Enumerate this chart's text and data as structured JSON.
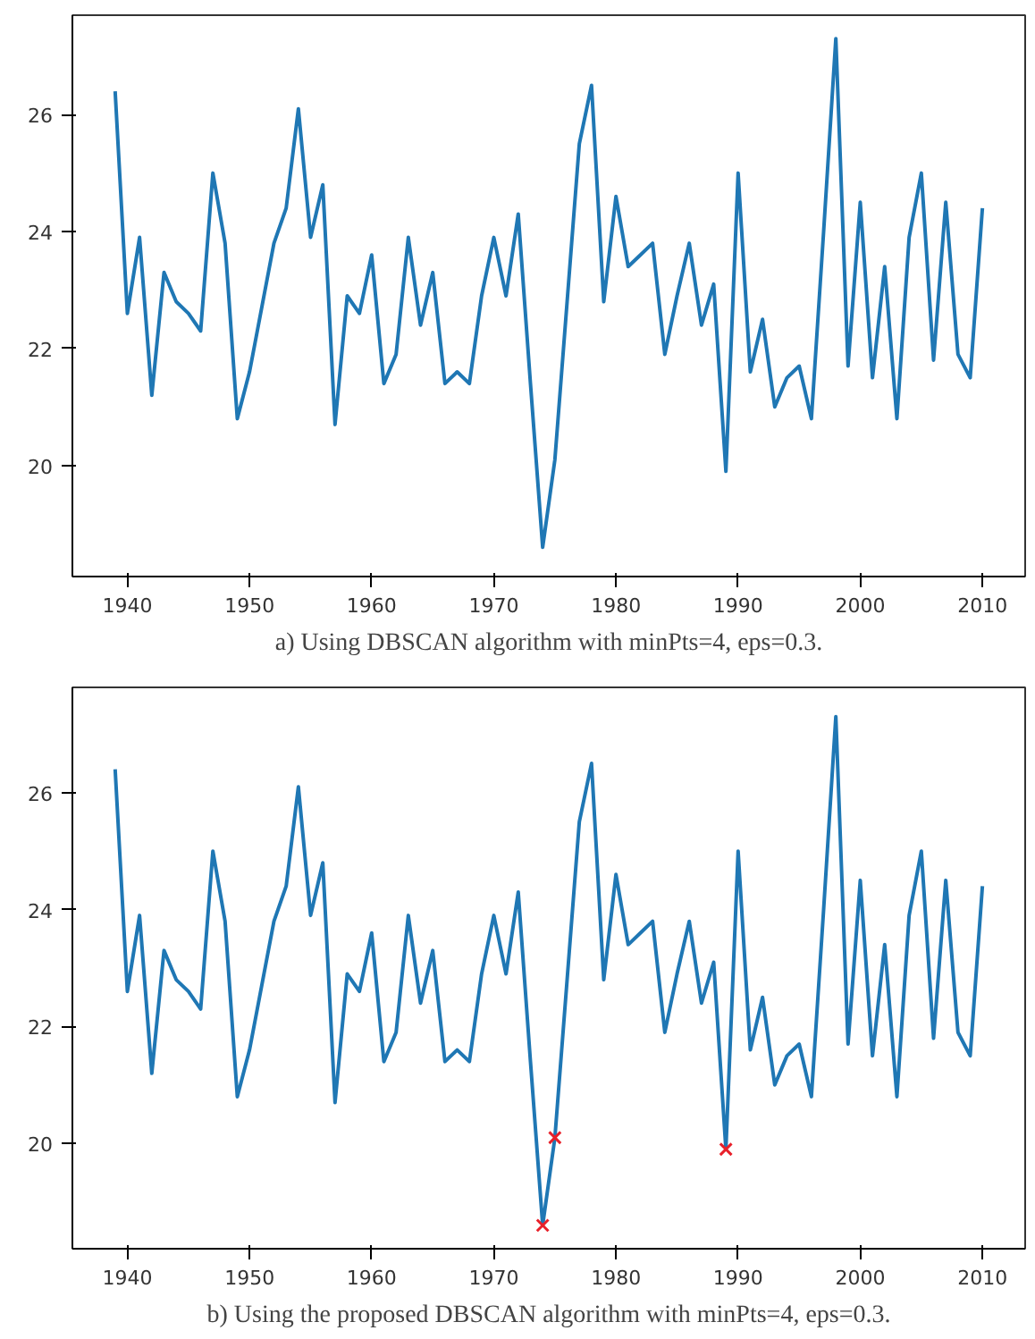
{
  "chart_data": [
    {
      "type": "line",
      "annotations": [
        "a) Using DBSCAN algorithm with minPts=4, eps=0.3."
      ],
      "x": [
        1939,
        1940,
        1941,
        1942,
        1943,
        1944,
        1945,
        1946,
        1947,
        1948,
        1949,
        1950,
        1951,
        1952,
        1953,
        1954,
        1955,
        1956,
        1957,
        1958,
        1959,
        1960,
        1961,
        1962,
        1963,
        1964,
        1965,
        1966,
        1967,
        1968,
        1969,
        1970,
        1971,
        1972,
        1973,
        1974,
        1975,
        1976,
        1977,
        1978,
        1979,
        1980,
        1981,
        1982,
        1983,
        1984,
        1985,
        1986,
        1987,
        1988,
        1989,
        1990,
        1991,
        1992,
        1993,
        1994,
        1995,
        1996,
        1997,
        1998,
        1999,
        2000,
        2001,
        2002,
        2003,
        2004,
        2005,
        2006,
        2007,
        2008,
        2009,
        2010
      ],
      "series": [
        {
          "color": "#1f77b4",
          "values": [
            26.4,
            22.6,
            23.9,
            21.2,
            23.3,
            22.8,
            22.6,
            22.3,
            25.0,
            23.8,
            20.8,
            21.6,
            22.7,
            23.8,
            24.4,
            26.1,
            23.9,
            24.8,
            20.7,
            22.9,
            22.6,
            23.6,
            21.4,
            21.9,
            23.9,
            22.4,
            23.3,
            21.4,
            21.6,
            21.4,
            22.9,
            23.9,
            22.9,
            24.3,
            21.4,
            18.6,
            20.1,
            22.8,
            25.5,
            26.5,
            22.8,
            24.6,
            23.4,
            23.6,
            23.8,
            21.9,
            22.9,
            23.8,
            22.4,
            23.1,
            19.9,
            25.0,
            21.6,
            22.5,
            21.0,
            21.5,
            21.7,
            20.8,
            24.0,
            27.3,
            21.7,
            24.5,
            21.5,
            23.4,
            20.8,
            23.9,
            25.0,
            21.8,
            24.5,
            21.9,
            21.5,
            24.4
          ]
        }
      ],
      "xlim": [
        1935.5,
        2013.5
      ],
      "ylim": [
        18.1,
        27.7
      ],
      "xticks": [
        1940,
        1950,
        1960,
        1970,
        1980,
        1990,
        2000,
        2010
      ],
      "yticks": [
        20,
        22,
        24,
        26
      ],
      "grid": false
    },
    {
      "type": "line",
      "annotations": [
        "b) Using the proposed DBSCAN algorithm with minPts=4, eps=0.3."
      ],
      "x": [
        1939,
        1940,
        1941,
        1942,
        1943,
        1944,
        1945,
        1946,
        1947,
        1948,
        1949,
        1950,
        1951,
        1952,
        1953,
        1954,
        1955,
        1956,
        1957,
        1958,
        1959,
        1960,
        1961,
        1962,
        1963,
        1964,
        1965,
        1966,
        1967,
        1968,
        1969,
        1970,
        1971,
        1972,
        1973,
        1974,
        1975,
        1976,
        1977,
        1978,
        1979,
        1980,
        1981,
        1982,
        1983,
        1984,
        1985,
        1986,
        1987,
        1988,
        1989,
        1990,
        1991,
        1992,
        1993,
        1994,
        1995,
        1996,
        1997,
        1998,
        1999,
        2000,
        2001,
        2002,
        2003,
        2004,
        2005,
        2006,
        2007,
        2008,
        2009,
        2010
      ],
      "series": [
        {
          "color": "#1f77b4",
          "values": [
            26.4,
            22.6,
            23.9,
            21.2,
            23.3,
            22.8,
            22.6,
            22.3,
            25.0,
            23.8,
            20.8,
            21.6,
            22.7,
            23.8,
            24.4,
            26.1,
            23.9,
            24.8,
            20.7,
            22.9,
            22.6,
            23.6,
            21.4,
            21.9,
            23.9,
            22.4,
            23.3,
            21.4,
            21.6,
            21.4,
            22.9,
            23.9,
            22.9,
            24.3,
            21.4,
            18.6,
            20.1,
            22.8,
            25.5,
            26.5,
            22.8,
            24.6,
            23.4,
            23.6,
            23.8,
            21.9,
            22.9,
            23.8,
            22.4,
            23.1,
            19.9,
            25.0,
            21.6,
            22.5,
            21.0,
            21.5,
            21.7,
            20.8,
            24.0,
            27.3,
            21.7,
            24.5,
            21.5,
            23.4,
            20.8,
            23.9,
            25.0,
            21.8,
            24.5,
            21.9,
            21.5,
            24.4
          ]
        },
        {
          "type": "scatter",
          "marker": "cross",
          "color": "#e8202a",
          "x": [
            1974,
            1975,
            1989
          ],
          "values": [
            18.6,
            20.1,
            19.9
          ]
        }
      ],
      "xlim": [
        1935.5,
        2013.5
      ],
      "ylim": [
        18.2,
        27.8
      ],
      "xticks": [
        1940,
        1950,
        1960,
        1970,
        1980,
        1990,
        2000,
        2010
      ],
      "yticks": [
        20,
        22,
        24,
        26
      ],
      "grid": false
    }
  ]
}
